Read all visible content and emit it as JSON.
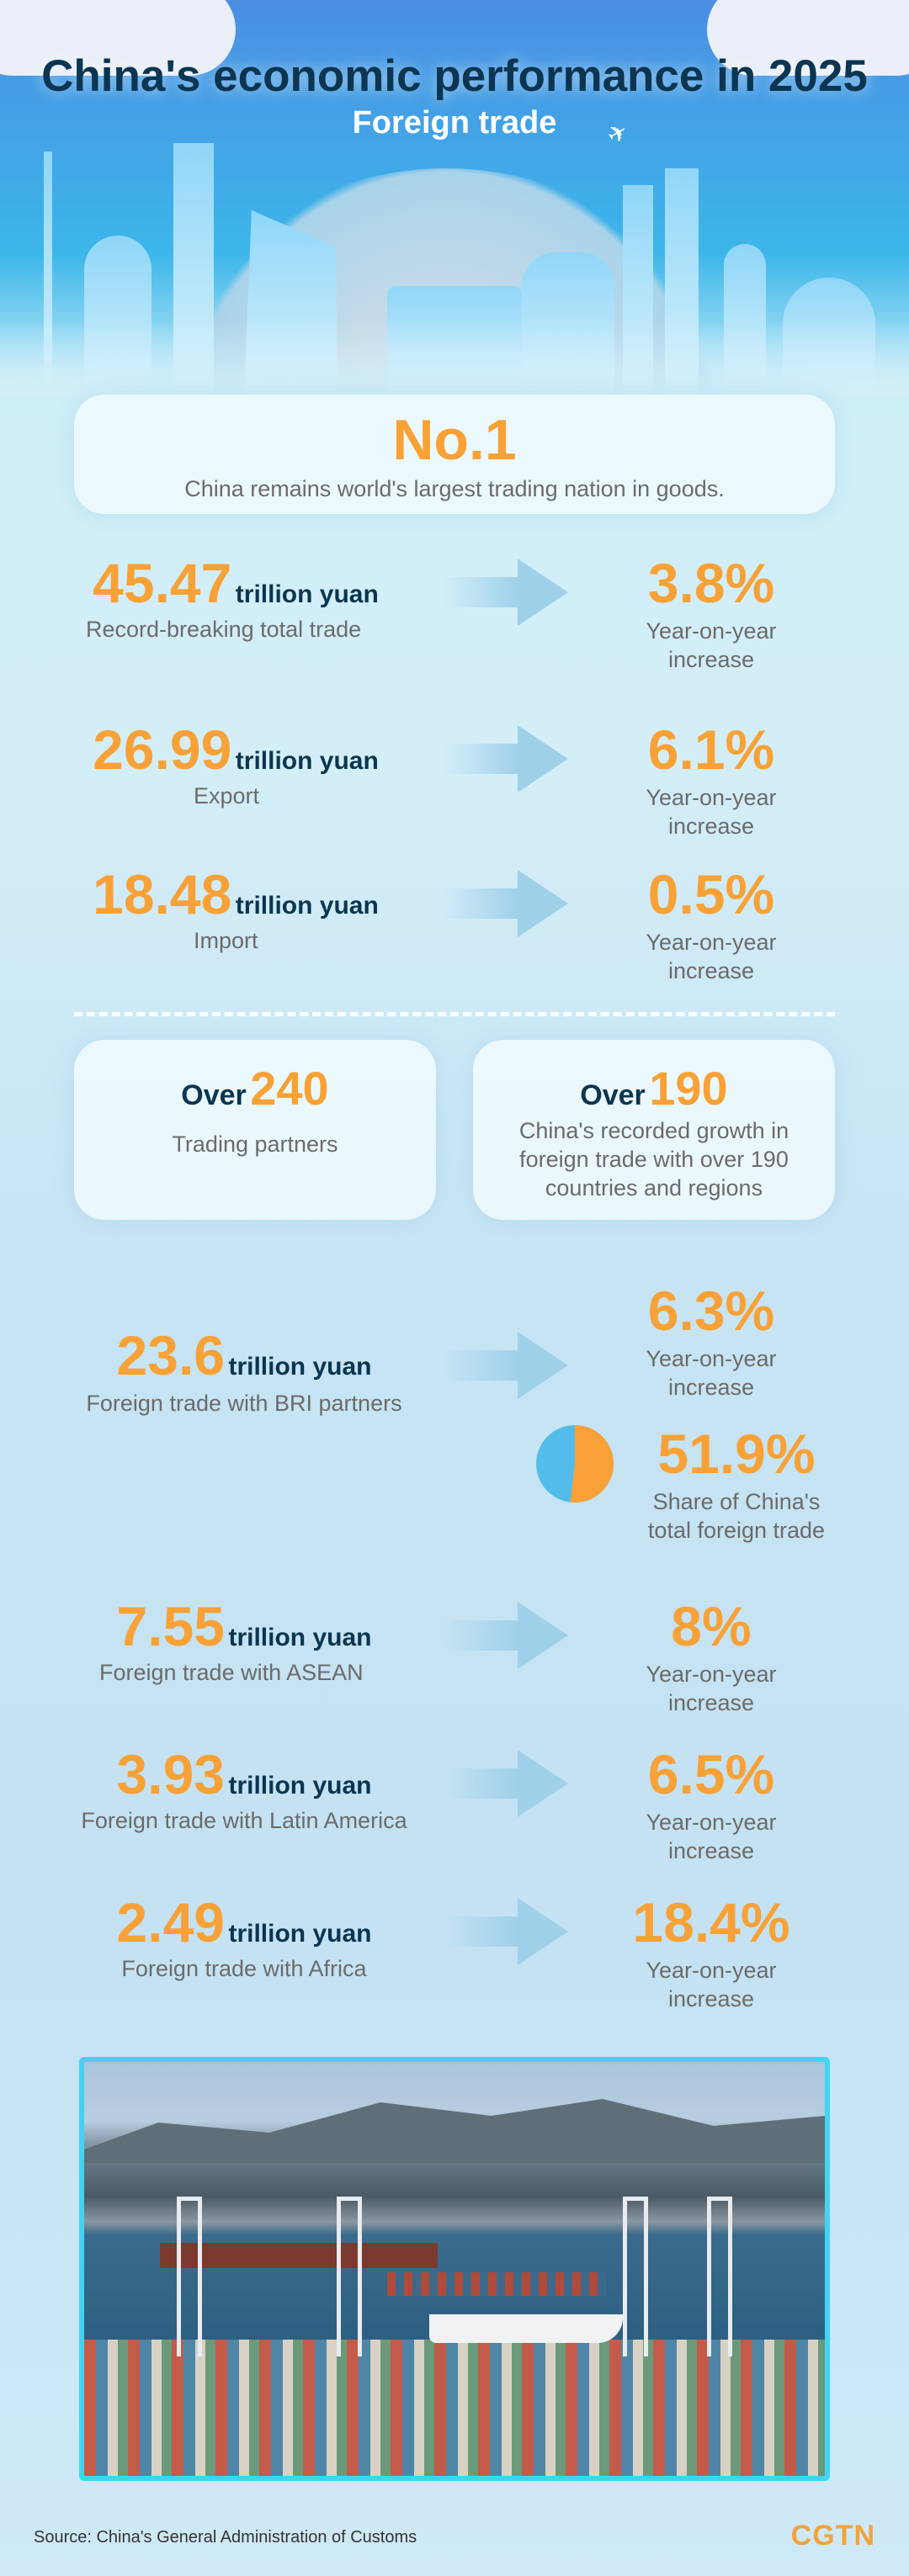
{
  "header": {
    "title": "China's economic performance in 2025",
    "subtitle": "Foreign trade"
  },
  "rank": {
    "value": "No.1",
    "text": "China remains world's largest trading nation in goods."
  },
  "unit": "trillion yuan",
  "yoy_label": "Year-on-year increase",
  "main_stats": [
    {
      "value": "45.47",
      "label": "Record-breaking total trade",
      "growth": "3.8%"
    },
    {
      "value": "26.99",
      "label": "Export",
      "growth": "6.1%"
    },
    {
      "value": "18.48",
      "label": "Import",
      "growth": "0.5%"
    }
  ],
  "partners": [
    {
      "prefix": "Over",
      "value": "240",
      "text": "Trading partners"
    },
    {
      "prefix": "Over",
      "value": "190",
      "text": "China's recorded growth in foreign trade with over 190 countries and regions"
    }
  ],
  "bri": {
    "value": "23.6",
    "label": "Foreign trade with BRI partners",
    "growth": "6.3%",
    "share": "51.9%",
    "share_label": "Share of China's total foreign trade",
    "share_fraction": 0.519
  },
  "regions": [
    {
      "value": "7.55",
      "label": "Foreign trade with ASEAN",
      "growth": "8%"
    },
    {
      "value": "3.93",
      "label": "Foreign trade with Latin America",
      "growth": "6.5%"
    },
    {
      "value": "2.49",
      "label": "Foreign trade with Africa",
      "growth": "18.4%"
    }
  ],
  "footer": {
    "source": "Source: China's General Administration of Customs",
    "brand": "CGTN"
  },
  "colors": {
    "accent": "#f8a136",
    "navy": "#0b3550",
    "pie_blue": "#52bdea"
  }
}
